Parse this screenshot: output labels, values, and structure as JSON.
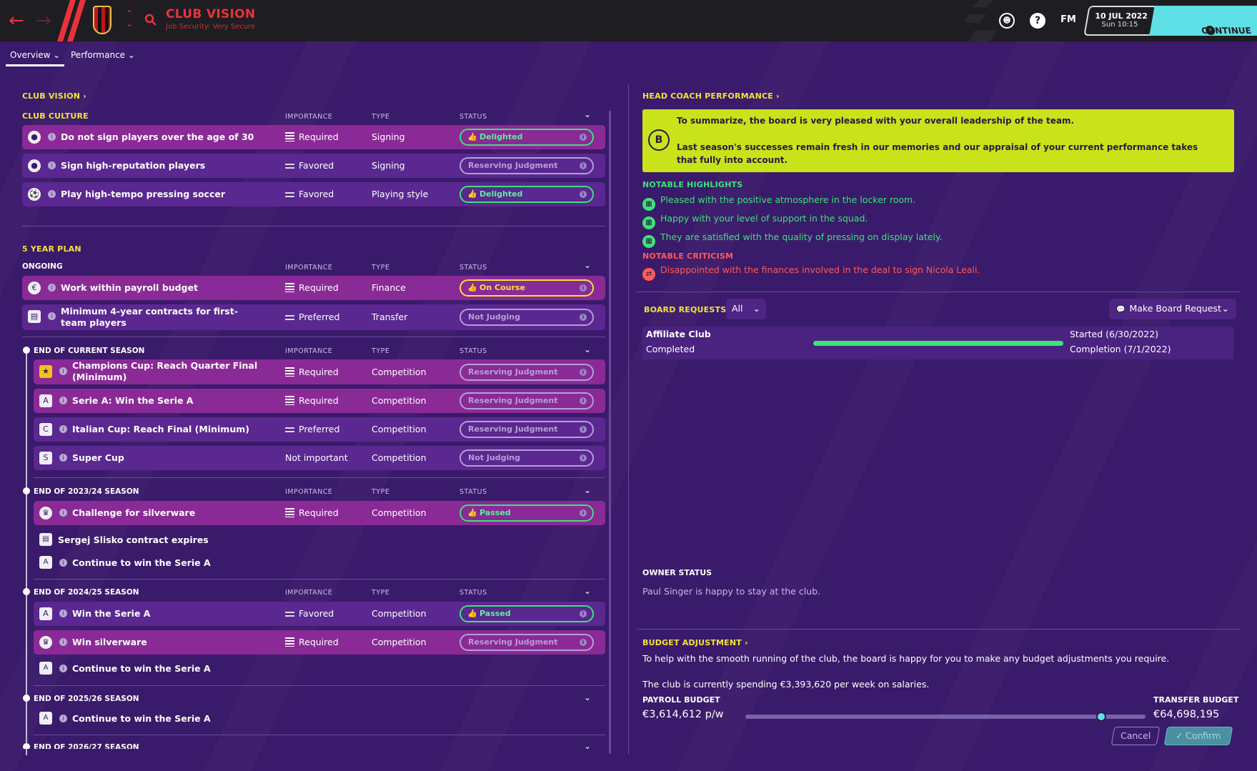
{
  "header": {
    "title": "CLUB VISION",
    "subtitle": "Job Security: Very Secure",
    "fm_label": "FM",
    "date": "10 JUL 2022",
    "time": "Sun 10:15",
    "continue_label": "CONTINUE"
  },
  "tabs": [
    {
      "label": "Overview ⌄"
    },
    {
      "label": "Performance ⌄"
    }
  ],
  "columns": {
    "importance": "IMPORTANCE",
    "type": "TYPE",
    "status": "STATUS"
  },
  "club_vision": {
    "title": "CLUB VISION ›",
    "culture_title": "CLUB CULTURE",
    "culture": [
      {
        "label": "Do not sign players over the age of 30",
        "importance": "Required",
        "type": "Signing",
        "status": "Delighted"
      },
      {
        "label": "Sign high-reputation players",
        "importance": "Favored",
        "type": "Signing",
        "status": "Reserving Judgment"
      },
      {
        "label": "Play high-tempo pressing soccer",
        "importance": "Favored",
        "type": "Playing style",
        "status": "Delighted"
      }
    ]
  },
  "five_year": {
    "title": "5 YEAR PLAN",
    "ongoing_title": "ONGOING",
    "ongoing": [
      {
        "label": "Work within payroll budget",
        "importance": "Required",
        "type": "Finance",
        "status": "On Course"
      },
      {
        "label": "Minimum 4-year contracts for first-team players",
        "importance": "Preferred",
        "type": "Transfer",
        "status": "Not Judging"
      }
    ],
    "current_title": "END OF CURRENT SEASON",
    "current": [
      {
        "label": "Champions Cup: Reach Quarter Final (Minimum)",
        "importance": "Required",
        "type": "Competition",
        "status": "Reserving Judgment"
      },
      {
        "label": "Serie A: Win the Serie A",
        "importance": "Required",
        "type": "Competition",
        "status": "Reserving Judgment"
      },
      {
        "label": "Italian Cup: Reach Final (Minimum)",
        "importance": "Preferred",
        "type": "Competition",
        "status": "Reserving Judgment"
      },
      {
        "label": "Super Cup",
        "importance": "Not important",
        "type": "Competition",
        "status": "Not Judging"
      }
    ],
    "s2324_title": "END OF 2023/24 SEASON",
    "s2324": [
      {
        "label": "Challenge for silverware",
        "importance": "Required",
        "type": "Competition",
        "status": "Passed"
      }
    ],
    "s2324_extra": [
      "Sergej Slisko contract expires",
      "Continue to win the Serie A"
    ],
    "s2425_title": "END OF 2024/25 SEASON",
    "s2425": [
      {
        "label": "Win the Serie A",
        "importance": "Favored",
        "type": "Competition",
        "status": "Passed"
      },
      {
        "label": "Win silverware",
        "importance": "Required",
        "type": "Competition",
        "status": "Reserving Judgment"
      }
    ],
    "s2425_extra": [
      "Continue to win the Serie A"
    ],
    "s2526_title": "END OF 2025/26 SEASON",
    "s2526_extra": [
      "Continue to win the Serie A"
    ],
    "s2627_title": "END OF 2026/27 SEASON"
  },
  "head_coach": {
    "title": "HEAD COACH PERFORMANCE ›",
    "grade": "B",
    "summary1": "To summarize, the board is very pleased with your overall leadership of the team.",
    "summary2": "Last season's successes remain fresh in our memories and our appraisal of your current performance takes that fully into account.",
    "highlights_title": "NOTABLE HIGHLIGHTS",
    "highlights": [
      "Pleased with the positive atmosphere in the locker room.",
      "Happy with your level of support in the squad.",
      "They are satisfied with the quality of pressing on display lately."
    ],
    "criticism_title": "NOTABLE CRITICISM",
    "criticism": [
      "Disappointed with the finances involved in the deal to sign Nicola Leali."
    ]
  },
  "board_requests": {
    "title": "BOARD REQUESTS",
    "filter": "All",
    "make_request": "Make Board Request",
    "items": [
      {
        "name": "Affiliate Club",
        "state": "Completed",
        "started": "Started (6/30/2022)",
        "completion": "Completion (7/1/2022)",
        "progress": 1.0
      }
    ]
  },
  "owner": {
    "title": "OWNER STATUS",
    "text": "Paul Singer is happy to stay at the club."
  },
  "budget": {
    "title": "BUDGET ADJUSTMENT ›",
    "text1": "To help with the smooth running of the club, the board is happy for you to make any budget adjustments you require.",
    "text2": "The club is currently spending €3,393,620 per week on salaries.",
    "payroll_label": "PAYROLL BUDGET",
    "payroll_value": "€3,614,612 p/w",
    "transfer_label": "TRANSFER BUDGET",
    "transfer_value": "€64,698,195",
    "slider_fraction": 0.89,
    "cancel": "Cancel",
    "confirm": "Confirm"
  },
  "colors": {
    "accent": "#f2e33a",
    "positive": "#3ce27a",
    "negative": "#ff5a5a",
    "continue": "#5ee0e6",
    "summary_bg": "#c8e31a"
  }
}
